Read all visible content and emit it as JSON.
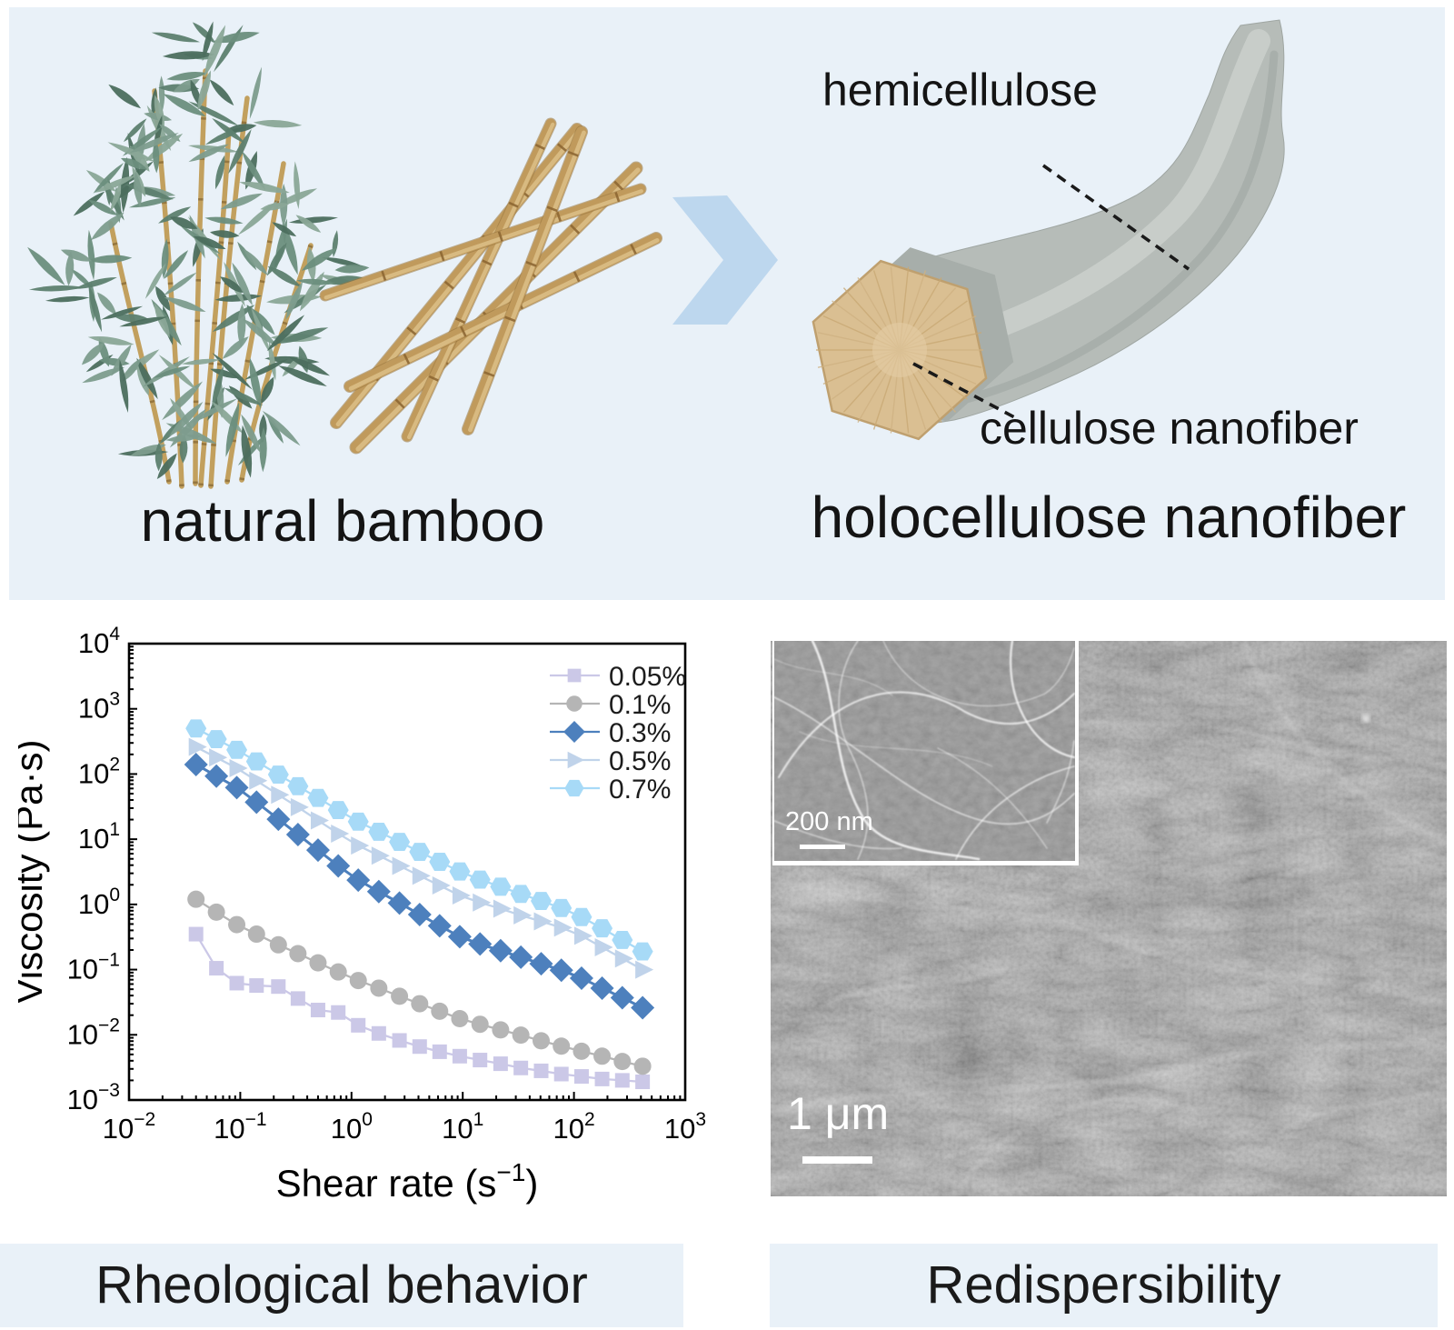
{
  "top_panel": {
    "background": "#e9f1f8",
    "title_left": "natural bamboo",
    "title_right": "holocellulose nanofiber",
    "annotation_hemicellulose": "hemicellulose",
    "annotation_cellulose": "cellulose nanofiber",
    "arrow_color": "#bdd7ee",
    "fiber_sheath_color": "#b6bcb8",
    "fiber_sheath_highlight": "#cdd3cf",
    "fiber_sheath_shadow": "#9aa19d",
    "fiber_core_color": "#dabf92",
    "fiber_core_edge": "#bfa06f",
    "bamboo_stalk_color": "#c2a05e",
    "bamboo_leaf_colors": [
      "#5d7f6f",
      "#6c8e7d",
      "#7d9c8d",
      "#4c6e5e",
      "#8aa697"
    ]
  },
  "chart_data": {
    "type": "line",
    "title": "",
    "xlabel_base": "Shear rate (s",
    "xlabel_sup_exponent": -1,
    "xlabel_close": ")",
    "ylabel": "Viscosity (Pa·s)",
    "x_scale": "log",
    "y_scale": "log",
    "xlim": [
      0.01,
      1000
    ],
    "ylim": [
      0.001,
      10000
    ],
    "x_tick_exponents": [
      -2,
      -1,
      0,
      1,
      2,
      3
    ],
    "y_tick_exponents": [
      4,
      3,
      2,
      1,
      0,
      -1,
      -2,
      -3
    ],
    "grid": false,
    "legend_position": "top-right",
    "x": [
      0.04,
      0.061,
      0.093,
      0.14,
      0.22,
      0.33,
      0.5,
      0.76,
      1.15,
      1.76,
      2.7,
      4.1,
      6.2,
      9.4,
      14.3,
      21.9,
      33.3,
      50.7,
      77,
      117,
      179,
      272,
      414
    ],
    "series": [
      {
        "name": "0.05%",
        "marker": "square",
        "color": "#cbc8e7",
        "values": [
          0.35,
          0.105,
          0.062,
          0.057,
          0.055,
          0.036,
          0.024,
          0.022,
          0.014,
          0.0105,
          0.0082,
          0.0066,
          0.0055,
          0.0047,
          0.0041,
          0.0036,
          0.0031,
          0.0028,
          0.0025,
          0.0023,
          0.0021,
          0.002,
          0.0019
        ]
      },
      {
        "name": "0.1%",
        "marker": "circle",
        "color": "#b5b5b5",
        "values": [
          1.2,
          0.76,
          0.49,
          0.35,
          0.24,
          0.176,
          0.127,
          0.092,
          0.068,
          0.052,
          0.039,
          0.03,
          0.023,
          0.0177,
          0.0145,
          0.0119,
          0.0099,
          0.0081,
          0.0067,
          0.0056,
          0.0047,
          0.0039,
          0.0033
        ]
      },
      {
        "name": "0.3%",
        "marker": "diamond",
        "color": "#4d80bd",
        "values": [
          140,
          93,
          62,
          37,
          20.3,
          11.8,
          6.8,
          3.9,
          2.36,
          1.57,
          1.05,
          0.7,
          0.47,
          0.32,
          0.247,
          0.195,
          0.155,
          0.123,
          0.098,
          0.074,
          0.052,
          0.037,
          0.026
        ]
      },
      {
        "name": "0.5%",
        "marker": "triangle-right",
        "color": "#c0d3ea",
        "values": [
          260,
          179,
          123,
          79,
          48,
          31,
          19.4,
          12.2,
          8,
          5.6,
          3.9,
          2.75,
          1.95,
          1.37,
          1.07,
          0.86,
          0.68,
          0.55,
          0.44,
          0.33,
          0.22,
          0.148,
          0.1
        ]
      },
      {
        "name": "0.7%",
        "marker": "hexagon",
        "color": "#a7daf7",
        "values": [
          500,
          343,
          235,
          156,
          98,
          65,
          43,
          28,
          18.6,
          13,
          9.1,
          6.4,
          4.5,
          3.2,
          2.4,
          1.87,
          1.45,
          1.13,
          0.88,
          0.64,
          0.43,
          0.285,
          0.19
        ]
      }
    ]
  },
  "sem": {
    "scalebar_inset_label": "200 nm",
    "scalebar_main_label": "1 μm"
  },
  "captions": {
    "left": "Rheological behavior",
    "right": "Redispersibility",
    "band_color": "#e9f1f8"
  }
}
